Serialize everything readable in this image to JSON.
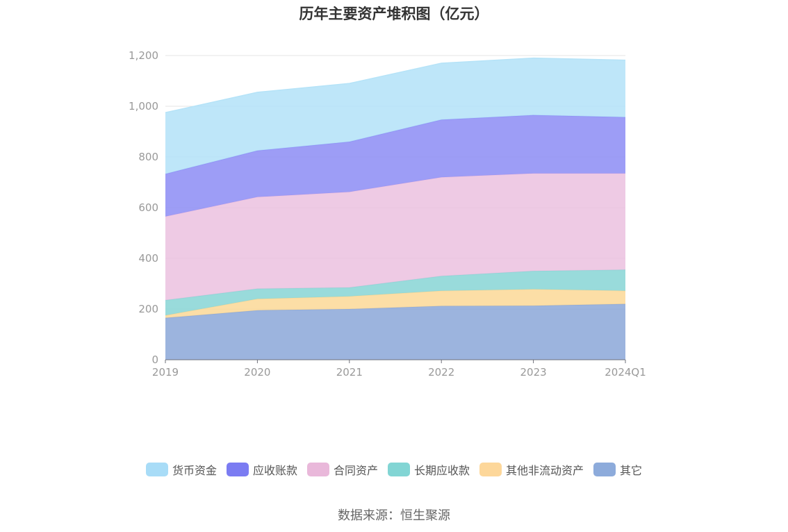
{
  "chart_data": {
    "type": "area",
    "title": "历年主要资产堆积图（亿元）",
    "stacked": true,
    "categories": [
      "2019",
      "2020",
      "2021",
      "2022",
      "2023",
      "2024Q1"
    ],
    "ylim": [
      0,
      1200
    ],
    "yticks": [
      "0",
      "200",
      "400",
      "600",
      "800",
      "1,000",
      "1,200"
    ],
    "grid": "horizontal",
    "legend_position": "bottom",
    "series": [
      {
        "name": "其它",
        "color": "#8eaad9",
        "values": [
          165,
          195,
          200,
          212,
          213,
          220
        ]
      },
      {
        "name": "其他非流动资产",
        "color": "#fcd99a",
        "values": [
          10,
          45,
          50,
          60,
          65,
          52
        ]
      },
      {
        "name": "长期应收款",
        "color": "#8bd6d6",
        "values": [
          60,
          40,
          35,
          58,
          72,
          83
        ]
      },
      {
        "name": "合同资产",
        "color": "#ecc3e0",
        "values": [
          330,
          362,
          377,
          390,
          385,
          380
        ]
      },
      {
        "name": "应收账款",
        "color": "#8f8ff5",
        "values": [
          168,
          183,
          198,
          227,
          230,
          222
        ]
      },
      {
        "name": "货币资金",
        "color": "#b5e3f8",
        "values": [
          242,
          230,
          230,
          223,
          225,
          225
        ]
      }
    ]
  },
  "legend_order": [
    "货币资金",
    "应收账款",
    "合同资产",
    "长期应收款",
    "其他非流动资产",
    "其它"
  ],
  "legend_colors": {
    "货币资金": "#a8dcf7",
    "应收账款": "#7b7cf2",
    "合同资产": "#e9b8da",
    "长期应收款": "#82d5d4",
    "其他非流动资产": "#fdd79a",
    "其它": "#8dabdb"
  },
  "source": "数据来源：恒生聚源"
}
